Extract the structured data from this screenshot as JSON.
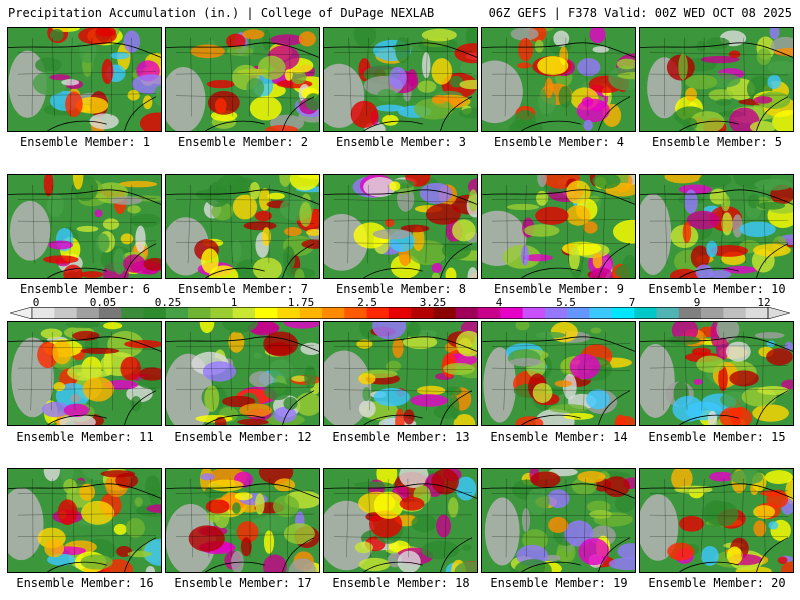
{
  "header": {
    "left": "Precipitation Accumulation (in.) | College of DuPage NEXLAB",
    "right": "06Z GEFS | F378 Valid: 00Z WED OCT 08 2025"
  },
  "colorbar": {
    "labels": [
      "0",
      "0.05",
      "0.25",
      "1",
      "1.75",
      "2.5",
      "3.25",
      "4",
      "5.5",
      "7",
      "9",
      "12"
    ],
    "colors": [
      "#e6e6e6",
      "#c8c8c8",
      "#a0a0a0",
      "#787878",
      "#3c8c3c",
      "#2e8b2e",
      "#46a046",
      "#6eb432",
      "#9acd32",
      "#c8e632",
      "#ffff00",
      "#ffd700",
      "#ffb400",
      "#ff8c00",
      "#ff5a00",
      "#ff2800",
      "#e60000",
      "#b40000",
      "#8b0000",
      "#a0005a",
      "#c8008c",
      "#e600c8",
      "#c850ff",
      "#9678ff",
      "#6496ff",
      "#3cc8ff",
      "#00e6ff",
      "#00c8c8",
      "#50b4b4",
      "#808080",
      "#a0a0a0",
      "#c0c0c0",
      "#dcdcdc"
    ]
  },
  "members": [
    {
      "label": "Ensemble Member: 1"
    },
    {
      "label": "Ensemble Member: 2"
    },
    {
      "label": "Ensemble Member: 3"
    },
    {
      "label": "Ensemble Member: 4"
    },
    {
      "label": "Ensemble Member: 5"
    },
    {
      "label": "Ensemble Member: 6"
    },
    {
      "label": "Ensemble Member: 7"
    },
    {
      "label": "Ensemble Member: 8"
    },
    {
      "label": "Ensemble Member: 9"
    },
    {
      "label": "Ensemble Member: 10"
    },
    {
      "label": "Ensemble Member: 11"
    },
    {
      "label": "Ensemble Member: 12"
    },
    {
      "label": "Ensemble Member: 13"
    },
    {
      "label": "Ensemble Member: 14"
    },
    {
      "label": "Ensemble Member: 15"
    },
    {
      "label": "Ensemble Member: 16"
    },
    {
      "label": "Ensemble Member: 17"
    },
    {
      "label": "Ensemble Member: 18"
    },
    {
      "label": "Ensemble Member: 19"
    },
    {
      "label": "Ensemble Member: 20"
    }
  ]
}
